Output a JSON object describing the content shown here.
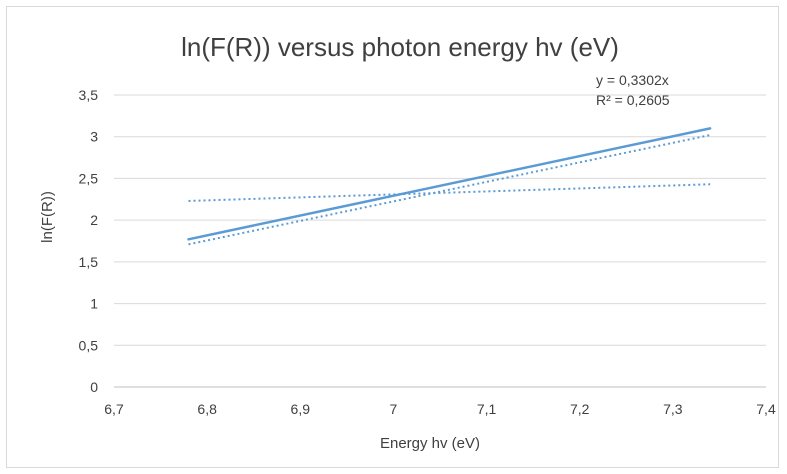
{
  "chart_data": {
    "type": "line",
    "title": "ln(F(R)) versus photon energy hv (eV)",
    "xlabel": "Energy hv (eV)",
    "ylabel": "ln(F(R))",
    "xlim": [
      6.7,
      7.4
    ],
    "ylim": [
      0,
      3.5
    ],
    "x_ticks": [
      "6,7",
      "6,8",
      "6,9",
      "7",
      "7,1",
      "7,2",
      "7,3",
      "7,4"
    ],
    "y_ticks": [
      "0",
      "0,5",
      "1",
      "1,5",
      "2",
      "2,5",
      "3",
      "3,5"
    ],
    "grid": "horizontal",
    "series": [
      {
        "style": "solid",
        "x": [
          6.78,
          7.34
        ],
        "y": [
          1.77,
          3.1
        ],
        "color": "#5b9bd5"
      },
      {
        "style": "dotted",
        "x": [
          6.78,
          7.34
        ],
        "y": [
          1.71,
          3.02
        ],
        "color": "#5b9bd5"
      },
      {
        "style": "dotted",
        "x": [
          6.78,
          7.34
        ],
        "y": [
          2.23,
          2.43
        ],
        "color": "#5b9bd5"
      }
    ],
    "annotations": [
      "y = 0,3302x",
      "R² = 0,2605"
    ]
  }
}
